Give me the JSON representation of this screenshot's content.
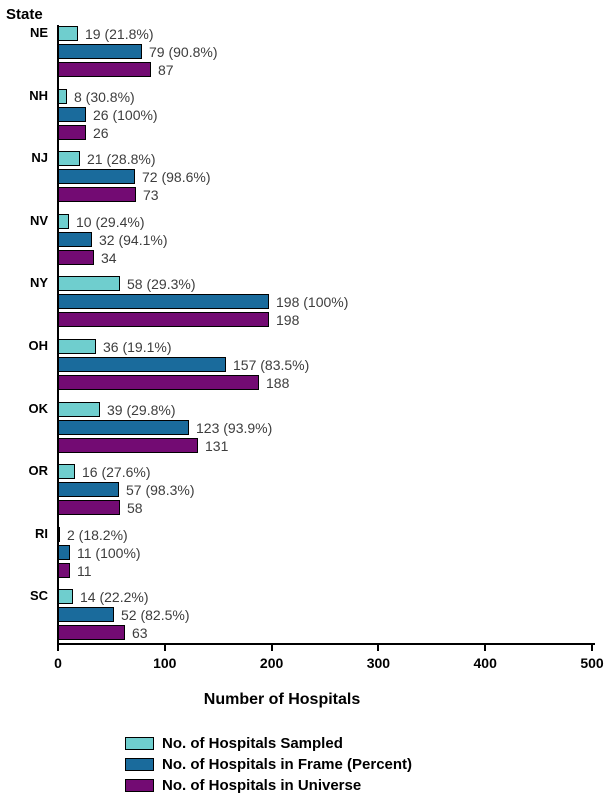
{
  "chart_data": {
    "type": "bar",
    "orientation": "horizontal",
    "ylabel": "State",
    "xlabel": "Number of Hospitals",
    "xlim": [
      0,
      500
    ],
    "x_ticks": [
      0,
      100,
      200,
      300,
      400,
      500
    ],
    "grid": "off",
    "legend_position": "bottom",
    "categories": [
      "NE",
      "NH",
      "NJ",
      "NV",
      "NY",
      "OH",
      "OK",
      "OR",
      "RI",
      "SC"
    ],
    "series": [
      {
        "name": "No. of Hospitals Sampled",
        "color": "#6fcece",
        "values": [
          19,
          8,
          21,
          10,
          58,
          36,
          39,
          16,
          2,
          14
        ],
        "labels": [
          "19 (21.8%)",
          "8 (30.8%)",
          "21 (28.8%)",
          "10 (29.4%)",
          "58 (29.3%)",
          "36 (19.1%)",
          "39 (29.8%)",
          "16 (27.6%)",
          "2 (18.2%)",
          "14 (22.2%)"
        ]
      },
      {
        "name": "No. of Hospitals in Frame (Percent)",
        "color": "#1a6b9c",
        "values": [
          79,
          26,
          72,
          32,
          198,
          157,
          123,
          57,
          11,
          52
        ],
        "labels": [
          "79 (90.8%)",
          "26 (100%)",
          "72 (98.6%)",
          "32 (94.1%)",
          "198 (100%)",
          "157 (83.5%)",
          "123 (93.9%)",
          "57 (98.3%)",
          "11 (100%)",
          "52 (82.5%)"
        ]
      },
      {
        "name": "No. of Hospitals in Universe",
        "color": "#730b73",
        "values": [
          87,
          26,
          73,
          34,
          198,
          188,
          131,
          58,
          11,
          63
        ],
        "labels": [
          "87",
          "26",
          "73",
          "34",
          "198",
          "188",
          "131",
          "58",
          "11",
          "63"
        ]
      }
    ]
  }
}
